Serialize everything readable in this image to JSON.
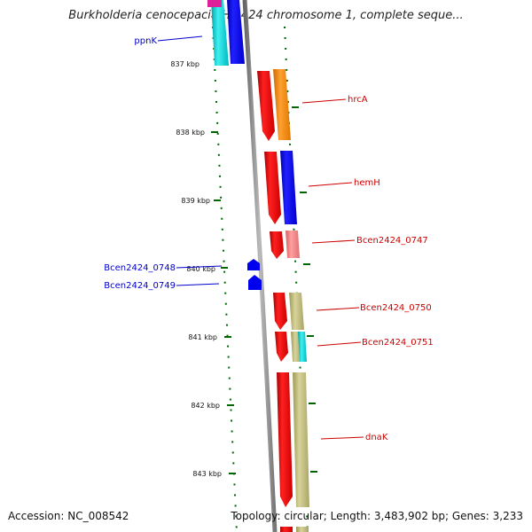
{
  "title": "Burkholderia cenocepacia HI2424 chromosome 1, complete seque...",
  "footer": {
    "accession": "Accession: NC_008542",
    "summary": "Topology: circular; Length: 3,483,902 bp; Genes: 3,233"
  },
  "ticks": [
    "837 kbp",
    "838 kbp",
    "839 kbp",
    "840 kbp",
    "841 kbp",
    "842 kbp",
    "843 kbp"
  ],
  "labels": {
    "ppnK": "ppnK",
    "hrcA": "hrcA",
    "hemH": "hemH",
    "b0747": "Bcen2424_0747",
    "b0748": "Bcen2424_0748",
    "b0749": "Bcen2424_0749",
    "b0750": "Bcen2424_0750",
    "b0751": "Bcen2424_0751",
    "dnaK": "dnaK"
  },
  "colors": {
    "forward_label": "#0000cc",
    "reverse_label": "#cc0000",
    "backbone": "#888888",
    "tick": "#006600",
    "gene_red": "#ee0000",
    "gene_blue": "#0000ee",
    "gene_orange": "#ff8c00",
    "gene_pink": "#f08080",
    "gene_olive": "#bdb76b",
    "gene_cyan": "#00ced1"
  }
}
